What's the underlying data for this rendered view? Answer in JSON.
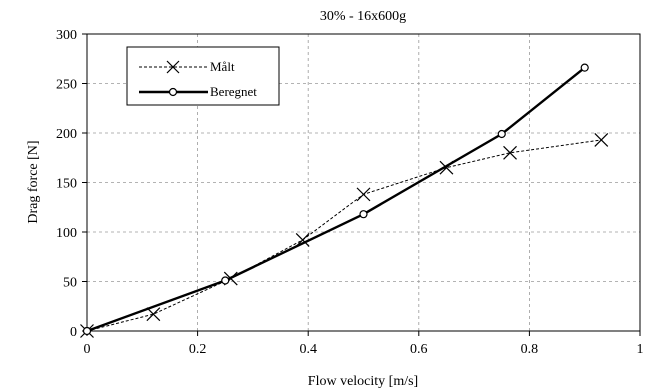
{
  "chart_data": {
    "type": "line",
    "title": "30% - 16x600g",
    "xlabel": "Flow velocity [m/s]",
    "ylabel": "Drag force  [N]",
    "xlim": [
      0,
      1
    ],
    "ylim": [
      0,
      300
    ],
    "xticks": [
      0,
      0.2,
      0.4,
      0.6,
      0.8,
      1
    ],
    "xtick_labels": [
      "0",
      "0.2",
      "0.4",
      "0.6",
      "0.8",
      "1"
    ],
    "yticks": [
      0,
      50,
      100,
      150,
      200,
      250,
      300
    ],
    "ytick_labels": [
      "0",
      "50",
      "100",
      "150",
      "200",
      "250",
      "300"
    ],
    "grid": true,
    "legend_position": "top-left",
    "series": [
      {
        "name": "Målt",
        "style": "dashed",
        "marker": "x",
        "color": "#000000",
        "x": [
          0,
          0.12,
          0.26,
          0.39,
          0.5,
          0.65,
          0.765,
          0.93
        ],
        "y": [
          0,
          17,
          53,
          92,
          138,
          165,
          180,
          193
        ]
      },
      {
        "name": "Beregnet",
        "style": "solid",
        "marker": "circle",
        "color": "#000000",
        "x": [
          0,
          0.25,
          0.5,
          0.75,
          0.9
        ],
        "y": [
          0,
          51,
          118,
          199,
          266
        ]
      }
    ]
  }
}
